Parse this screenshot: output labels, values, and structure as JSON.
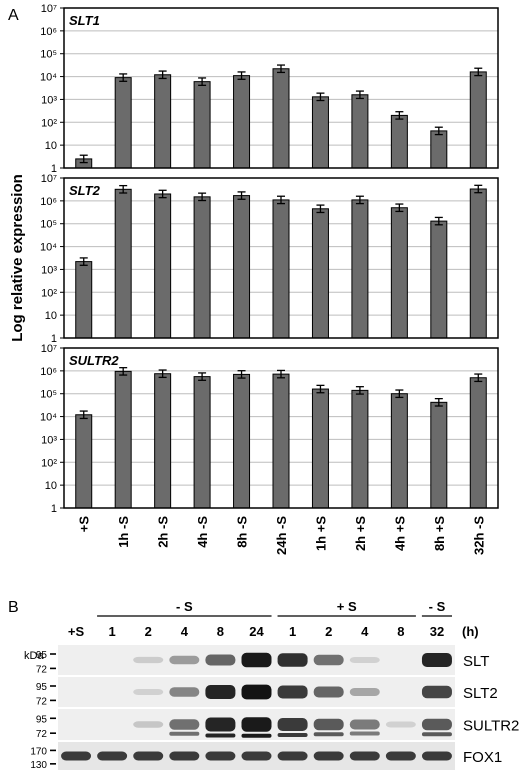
{
  "panels": {
    "a": "A",
    "b": "B"
  },
  "chart_data": {
    "type": "bar",
    "scale": "log",
    "ylabel": "Log relative expression",
    "categories": [
      "+S",
      "1h -S",
      "2h -S",
      "4h -S",
      "8h -S",
      "24h -S",
      "1h +S",
      "2h +S",
      "4h +S",
      "8h +S",
      "32h -S"
    ],
    "yticks": [
      "1",
      "10",
      "10²",
      "10³",
      "10⁴",
      "10⁵",
      "10⁶",
      "10⁷"
    ],
    "ylim": [
      1,
      10000000
    ],
    "grid": true,
    "bar_color": "#6b6b6b",
    "subplots": [
      {
        "title": "SLT1",
        "values": [
          2.5,
          9000,
          12000,
          6000,
          11000,
          22000,
          1300,
          1600,
          200,
          42,
          16000
        ]
      },
      {
        "title": "SLT2",
        "values": [
          2200,
          3200000,
          2000000,
          1500000,
          1700000,
          1100000,
          450000,
          1100000,
          500000,
          130000,
          3300000
        ]
      },
      {
        "title": "SULTR2",
        "values": [
          12000,
          950000,
          750000,
          560000,
          700000,
          720000,
          160000,
          140000,
          100000,
          42000,
          500000
        ]
      }
    ]
  },
  "blot": {
    "kda_label": "kDa",
    "hours_label": "(h)",
    "groups": [
      "- S",
      "+ S",
      "- S"
    ],
    "lanes": [
      "+S",
      "1",
      "2",
      "4",
      "8",
      "24",
      "1",
      "2",
      "4",
      "8",
      "32"
    ],
    "rows": [
      {
        "name": "SLT",
        "markers": [
          "95",
          "72"
        ],
        "intensity": [
          0,
          0,
          0.12,
          0.35,
          0.6,
          0.95,
          0.85,
          0.55,
          0.1,
          0,
          0.9
        ]
      },
      {
        "name": "SLT2",
        "markers": [
          "95",
          "72"
        ],
        "intensity": [
          0,
          0,
          0.1,
          0.45,
          0.9,
          0.98,
          0.8,
          0.6,
          0.3,
          0,
          0.75
        ]
      },
      {
        "name": "SULTR2",
        "markers": [
          "95",
          "72"
        ],
        "intensity": [
          0,
          0,
          0.15,
          0.55,
          0.9,
          0.95,
          0.8,
          0.65,
          0.5,
          0.1,
          0.65
        ]
      },
      {
        "name": "FOX1",
        "markers": [
          "170",
          "130"
        ],
        "intensity": [
          0.8,
          0.8,
          0.8,
          0.8,
          0.8,
          0.8,
          0.8,
          0.8,
          0.8,
          0.8,
          0.8
        ]
      }
    ]
  }
}
